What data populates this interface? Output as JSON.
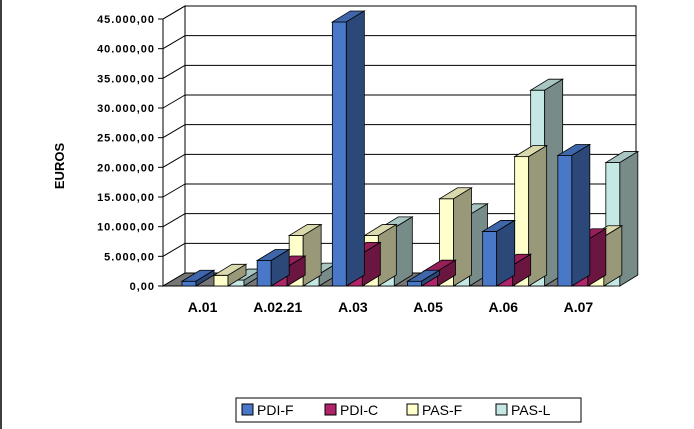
{
  "chart_data": {
    "type": "bar",
    "title": "",
    "xlabel": "",
    "ylabel": "EUROS",
    "ylim": [
      0,
      45000
    ],
    "ytick_step": 5000,
    "ytick_labels": [
      "0,00",
      "5.000,00",
      "10.000,00",
      "15.000,00",
      "20.000,00",
      "25.000,00",
      "30.000,00",
      "35.000,00",
      "40.000,00",
      "45.000,00"
    ],
    "categories": [
      "A.01",
      "A.02.21",
      "A.03",
      "A.05",
      "A.06",
      "A.07"
    ],
    "series": [
      {
        "name": "PDI-F",
        "color": "#4A78C8",
        "values": [
          800,
          4300,
          44500,
          800,
          9200,
          22000
        ]
      },
      {
        "name": "PDI-C",
        "color": "#B0246A",
        "values": [
          0,
          3200,
          5500,
          2500,
          3500,
          7800
        ]
      },
      {
        "name": "PAS-F",
        "color": "#FFFFCC",
        "values": [
          1800,
          8500,
          8500,
          14700,
          21800,
          8300
        ]
      },
      {
        "name": "PAS-L",
        "color": "#C6E8E4",
        "values": [
          1000,
          2000,
          9800,
          12000,
          33000,
          20800
        ]
      }
    ],
    "legend_position": "bottom",
    "grid": true,
    "style": "3d-clustered"
  }
}
